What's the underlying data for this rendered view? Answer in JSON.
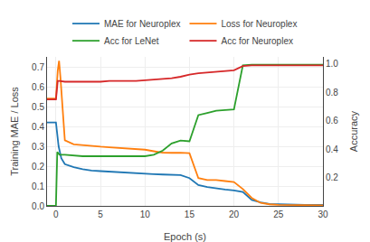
{
  "chart_data": {
    "type": "line",
    "xlabel": "Epoch (s)",
    "ylabel": "Training MAE / Loss",
    "y2label": "Accuracy",
    "xlim": [
      -1,
      30
    ],
    "ylim": [
      0.0,
      0.75
    ],
    "y2lim": [
      0.0,
      1.05
    ],
    "xticks": [
      0,
      5,
      10,
      15,
      20,
      25,
      30
    ],
    "yticks": [
      {
        "value": 0.0,
        "label": "0.0"
      },
      0.1,
      0.2,
      0.3,
      0.4,
      0.5,
      0.6,
      0.7
    ],
    "y2ticks": [
      0.2,
      0.4,
      0.6,
      0.8,
      {
        "value": 1.0,
        "label": "1.0"
      }
    ],
    "grid": true,
    "legend": "top",
    "series": [
      {
        "name": "MAE for Neuroplex",
        "color": "#1f77b4",
        "x": [
          -1,
          0,
          0.3,
          0.6,
          1,
          2,
          3,
          4,
          5,
          6,
          7,
          8,
          9,
          10,
          11,
          12,
          13,
          14,
          15,
          16,
          17,
          18,
          19,
          20,
          21,
          22,
          23,
          24,
          25,
          26,
          27,
          28,
          29,
          30
        ],
        "values": [
          0.42,
          0.42,
          0.3,
          0.24,
          0.21,
          0.195,
          0.185,
          0.178,
          0.175,
          0.172,
          0.17,
          0.168,
          0.165,
          0.162,
          0.16,
          0.158,
          0.156,
          0.155,
          0.14,
          0.105,
          0.095,
          0.088,
          0.082,
          0.078,
          0.07,
          0.03,
          0.018,
          0.01,
          0.008,
          0.007,
          0.006,
          0.005,
          0.005,
          0.005
        ]
      },
      {
        "name": "Loss for Neuroplex",
        "color": "#ff7f0e",
        "x": [
          -1,
          0,
          0.2,
          0.35,
          0.5,
          1,
          2,
          3,
          4,
          5,
          6,
          7,
          8,
          9,
          10,
          11,
          12,
          13,
          14,
          15,
          16,
          17,
          18,
          19,
          20,
          21,
          22,
          23,
          24,
          25,
          26,
          27,
          28,
          29,
          30
        ],
        "values": [
          0.54,
          0.54,
          0.68,
          0.73,
          0.65,
          0.33,
          0.31,
          0.305,
          0.3,
          0.298,
          0.295,
          0.292,
          0.289,
          0.286,
          0.283,
          0.275,
          0.268,
          0.267,
          0.268,
          0.265,
          0.14,
          0.13,
          0.13,
          0.125,
          0.12,
          0.085,
          0.04,
          0.015,
          0.008,
          0.005,
          0.004,
          0.003,
          0.003,
          0.003,
          0.003
        ]
      },
      {
        "name": "Acc for LeNet",
        "color": "#2ca02c",
        "axis": "y2",
        "x": [
          -1,
          0,
          0.15,
          0.4,
          1,
          2,
          3,
          4,
          5,
          6,
          7,
          8,
          9,
          10,
          11,
          12,
          13,
          14,
          15,
          16,
          17,
          18,
          19,
          20,
          21,
          22,
          23,
          24,
          25,
          26,
          27,
          28,
          29,
          30
        ],
        "values": [
          0.0,
          0.0,
          0.38,
          0.36,
          0.36,
          0.355,
          0.35,
          0.35,
          0.35,
          0.35,
          0.35,
          0.35,
          0.35,
          0.35,
          0.36,
          0.39,
          0.44,
          0.46,
          0.455,
          0.64,
          0.655,
          0.67,
          0.675,
          0.68,
          0.99,
          0.995,
          0.995,
          0.995,
          0.995,
          0.995,
          0.995,
          0.995,
          0.995,
          0.995
        ]
      },
      {
        "name": "Acc for Neuroplex",
        "color": "#d62728",
        "axis": "y2",
        "x": [
          -1,
          0,
          0.2,
          0.4,
          1,
          2,
          3,
          4,
          5,
          6,
          7,
          8,
          9,
          10,
          11,
          12,
          13,
          14,
          15,
          16,
          17,
          18,
          19,
          20,
          21,
          22,
          23,
          24,
          25,
          26,
          27,
          28,
          29,
          30
        ],
        "values": [
          0.75,
          0.75,
          0.88,
          0.88,
          0.875,
          0.875,
          0.875,
          0.875,
          0.875,
          0.88,
          0.88,
          0.88,
          0.88,
          0.885,
          0.89,
          0.895,
          0.9,
          0.91,
          0.925,
          0.935,
          0.94,
          0.945,
          0.95,
          0.955,
          0.985,
          0.99,
          0.99,
          0.99,
          0.99,
          0.99,
          0.99,
          0.99,
          0.99,
          0.99
        ]
      }
    ]
  }
}
